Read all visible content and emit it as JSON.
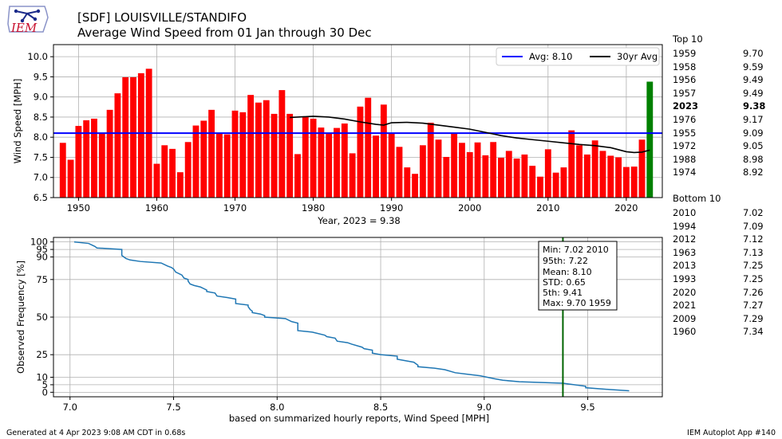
{
  "header": {
    "title_line1": "[SDF] LOUISVILLE/STANDIFO",
    "title_line2": "Average Wind Speed from 01 Jan through 30 Dec",
    "logo_text": "IEM"
  },
  "footer": {
    "left": "Generated at 4 Apr 2023 9:08 AM CDT in 0.68s",
    "right": "IEM Autoplot App #140"
  },
  "rankings": {
    "top_title": "Top 10",
    "top": [
      {
        "year": "1959",
        "value": "9.70",
        "bold": false
      },
      {
        "year": "1958",
        "value": "9.59",
        "bold": false
      },
      {
        "year": "1956",
        "value": "9.49",
        "bold": false
      },
      {
        "year": "1957",
        "value": "9.49",
        "bold": false
      },
      {
        "year": "2023",
        "value": "9.38",
        "bold": true
      },
      {
        "year": "1976",
        "value": "9.17",
        "bold": false
      },
      {
        "year": "1955",
        "value": "9.09",
        "bold": false
      },
      {
        "year": "1972",
        "value": "9.05",
        "bold": false
      },
      {
        "year": "1988",
        "value": "8.98",
        "bold": false
      },
      {
        "year": "1974",
        "value": "8.92",
        "bold": false
      }
    ],
    "bottom_title": "Bottom 10",
    "bottom": [
      {
        "year": "2010",
        "value": "7.02"
      },
      {
        "year": "1994",
        "value": "7.09"
      },
      {
        "year": "2012",
        "value": "7.12"
      },
      {
        "year": "1963",
        "value": "7.13"
      },
      {
        "year": "2013",
        "value": "7.25"
      },
      {
        "year": "1993",
        "value": "7.25"
      },
      {
        "year": "2020",
        "value": "7.26"
      },
      {
        "year": "2021",
        "value": "7.27"
      },
      {
        "year": "2009",
        "value": "7.29"
      },
      {
        "year": "1960",
        "value": "7.34"
      }
    ]
  },
  "colors": {
    "bar": "#ff0000",
    "highlight": "#008000",
    "avg_line": "#0000ff",
    "avg30": "#000000",
    "cdf_line": "#1f77b4",
    "marker": "#006400"
  },
  "chart_data": [
    {
      "type": "bar",
      "ylabel": "Wind Speed [MPH]",
      "xlabel": "Year, 2023 = 9.38",
      "ylim": [
        6.5,
        10.3
      ],
      "xlim": [
        1946.8,
        2024.6
      ],
      "yticks": [
        6.5,
        7.0,
        7.5,
        8.0,
        8.5,
        9.0,
        9.5,
        10.0
      ],
      "ytick_labels": [
        "6.5",
        "7.0",
        "7.5",
        "8.0",
        "8.5",
        "9.0",
        "9.5",
        "10.0"
      ],
      "xticks": [
        1950,
        1960,
        1970,
        1980,
        1990,
        2000,
        2010,
        2020
      ],
      "xtick_labels": [
        "1950",
        "1960",
        "1970",
        "1980",
        "1990",
        "2000",
        "2010",
        "2020"
      ],
      "grid": true,
      "years": [
        1948,
        1949,
        1950,
        1951,
        1952,
        1953,
        1954,
        1955,
        1956,
        1957,
        1958,
        1959,
        1960,
        1961,
        1962,
        1963,
        1964,
        1965,
        1966,
        1967,
        1968,
        1969,
        1970,
        1971,
        1972,
        1973,
        1974,
        1975,
        1976,
        1977,
        1978,
        1979,
        1980,
        1981,
        1982,
        1983,
        1984,
        1985,
        1986,
        1987,
        1988,
        1989,
        1990,
        1991,
        1992,
        1993,
        1994,
        1995,
        1996,
        1997,
        1998,
        1999,
        2000,
        2001,
        2002,
        2003,
        2004,
        2005,
        2006,
        2007,
        2008,
        2009,
        2010,
        2011,
        2012,
        2013,
        2014,
        2015,
        2016,
        2017,
        2018,
        2019,
        2020,
        2021,
        2022,
        2023
      ],
      "values": [
        7.86,
        7.44,
        8.28,
        8.42,
        8.46,
        8.1,
        8.68,
        9.09,
        9.49,
        9.49,
        9.59,
        9.7,
        7.34,
        7.8,
        7.71,
        7.13,
        7.88,
        8.29,
        8.41,
        8.68,
        8.1,
        8.07,
        8.66,
        8.62,
        9.05,
        8.86,
        8.92,
        8.58,
        9.17,
        8.58,
        7.58,
        8.5,
        8.46,
        8.24,
        8.1,
        8.23,
        8.34,
        7.6,
        8.76,
        8.98,
        8.04,
        8.81,
        8.1,
        7.76,
        7.25,
        7.09,
        7.8,
        8.36,
        7.94,
        7.51,
        8.1,
        7.86,
        7.63,
        7.87,
        7.55,
        7.88,
        7.49,
        7.66,
        7.47,
        7.57,
        7.29,
        7.02,
        7.7,
        7.12,
        7.25,
        8.17,
        7.8,
        7.57,
        7.92,
        7.66,
        7.54,
        7.5,
        7.26,
        7.27,
        7.94,
        9.38
      ],
      "highlight_year": 2023,
      "average": {
        "label": "Avg: 8.10",
        "value": 8.1
      },
      "avg30": {
        "label": "30yr Avg",
        "x": [
          1977,
          1978,
          1980,
          1982,
          1984,
          1986,
          1988,
          1989,
          1990,
          1992,
          1994,
          1996,
          1998,
          2000,
          2002,
          2004,
          2006,
          2008,
          2010,
          2012,
          2014,
          2016,
          2018,
          2020,
          2021,
          2022,
          2023
        ],
        "y": [
          8.49,
          8.5,
          8.52,
          8.5,
          8.45,
          8.38,
          8.32,
          8.3,
          8.36,
          8.37,
          8.35,
          8.3,
          8.25,
          8.2,
          8.12,
          8.04,
          7.98,
          7.94,
          7.9,
          7.86,
          7.82,
          7.79,
          7.74,
          7.64,
          7.62,
          7.63,
          7.68
        ]
      },
      "legend": "top-right"
    },
    {
      "type": "line",
      "ylabel": "Observed Frequency [%]",
      "xlabel": "based on summarized hourly reports, Wind Speed [MPH]",
      "xlim": [
        6.92,
        9.86
      ],
      "ylim": [
        -3,
        103
      ],
      "xticks": [
        7.0,
        7.5,
        8.0,
        8.5,
        9.0,
        9.5
      ],
      "xtick_labels": [
        "7.0",
        "7.5",
        "8.0",
        "8.5",
        "9.0",
        "9.5"
      ],
      "yticks": [
        0,
        5,
        10,
        25,
        50,
        75,
        90,
        95,
        100
      ],
      "ytick_labels": [
        "0",
        "5",
        "10",
        "25",
        "50",
        "75",
        "90",
        "95",
        "100"
      ],
      "grid": true,
      "x": [
        7.02,
        7.09,
        7.12,
        7.13,
        7.25,
        7.25,
        7.26,
        7.27,
        7.29,
        7.34,
        7.44,
        7.47,
        7.49,
        7.5,
        7.51,
        7.54,
        7.55,
        7.57,
        7.57,
        7.58,
        7.6,
        7.63,
        7.66,
        7.66,
        7.7,
        7.71,
        7.76,
        7.8,
        7.8,
        7.8,
        7.86,
        7.86,
        7.87,
        7.88,
        7.88,
        7.92,
        7.94,
        7.94,
        8.04,
        8.07,
        8.1,
        8.1,
        8.1,
        8.1,
        8.1,
        8.17,
        8.23,
        8.24,
        8.28,
        8.29,
        8.34,
        8.36,
        8.41,
        8.42,
        8.46,
        8.46,
        8.5,
        8.58,
        8.58,
        8.62,
        8.66,
        8.68,
        8.68,
        8.76,
        8.81,
        8.86,
        8.92,
        8.98,
        9.05,
        9.09,
        9.17,
        9.38,
        9.49,
        9.49,
        9.59,
        9.7
      ],
      "y": [
        100,
        99,
        97,
        96,
        95,
        91,
        90,
        89,
        88,
        87,
        86,
        84,
        83,
        82,
        80,
        78,
        76,
        75,
        74,
        72,
        71,
        70,
        68,
        67,
        66,
        64,
        63,
        62,
        61,
        59,
        58,
        57,
        55,
        54,
        53,
        52,
        51,
        50,
        49,
        47,
        46,
        45,
        43,
        42,
        41,
        40,
        38,
        37,
        36,
        34,
        33,
        32,
        30,
        29,
        28,
        26,
        25,
        24,
        22,
        21,
        20,
        18,
        17,
        16,
        15,
        13,
        12,
        11,
        9,
        8,
        7,
        6,
        4,
        3,
        2,
        1
      ],
      "marker": {
        "value": 9.38
      },
      "stats_box": [
        "Min: 7.02 2010",
        "95th: 7.22",
        "Mean: 8.10",
        "STD: 0.65",
        "5th: 9.41",
        "Max: 9.70 1959"
      ]
    }
  ]
}
